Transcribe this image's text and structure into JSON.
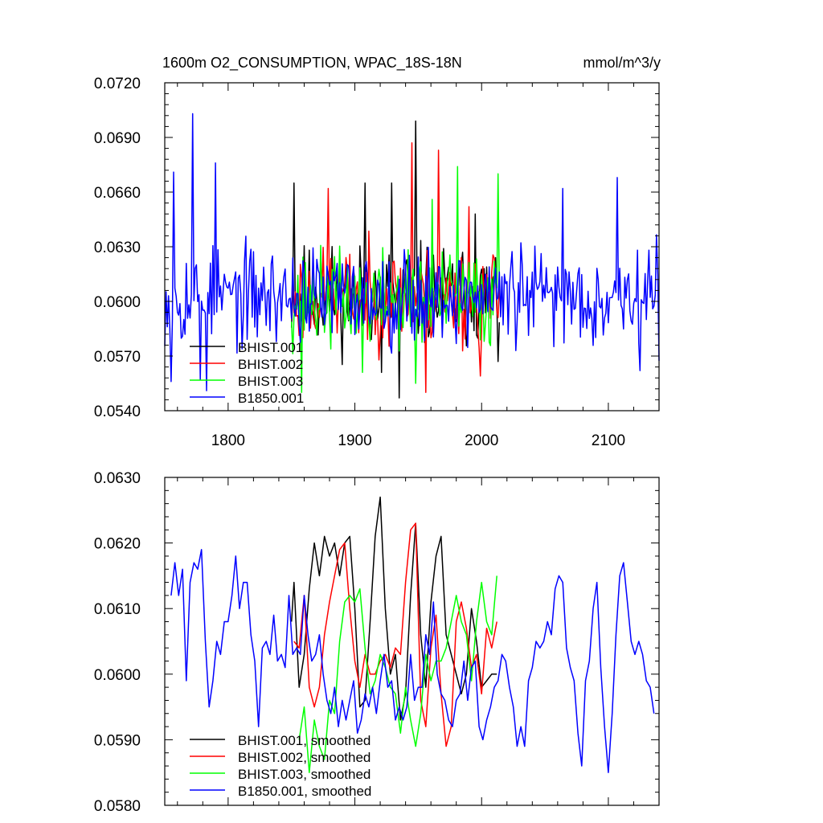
{
  "chart_data": [
    {
      "type": "line",
      "title_left": "1600m O2_CONSUMPTION, WPAC_18S-18N",
      "title_right": "mmol/m^3/y",
      "xlim": [
        1750,
        2140
      ],
      "ylim": [
        0.054,
        0.072
      ],
      "x_ticks": [
        1800,
        1900,
        2000,
        2100
      ],
      "y_ticks": [
        0.054,
        0.057,
        0.06,
        0.063,
        0.066,
        0.069,
        0.072
      ],
      "y_tick_labels": [
        "0.0540",
        "0.0570",
        "0.0600",
        "0.0630",
        "0.0660",
        "0.0690",
        "0.0720"
      ],
      "legend_position": "bottom-left",
      "grid": false,
      "series": [
        {
          "name": "BHIST.001",
          "color": "#000000",
          "x_start": 1850,
          "x_end": 2014,
          "mean": 0.0603,
          "amplitude": 0.0022,
          "seed": 11,
          "peaks": [
            [
              1852,
              0.0665
            ],
            [
              1908,
              0.0665
            ],
            [
              1929,
              0.0665
            ],
            [
              1948,
              0.0699
            ],
            [
              1995,
              0.0648
            ]
          ],
          "troughs": [
            [
              1935,
              0.0547
            ],
            [
              1921,
              0.0561
            ],
            [
              2013,
              0.0567
            ]
          ]
        },
        {
          "name": "BHIST.002",
          "color": "#ff0000",
          "x_start": 1850,
          "x_end": 2014,
          "mean": 0.0602,
          "amplitude": 0.0021,
          "seed": 23,
          "peaks": [
            [
              1945,
              0.0687
            ],
            [
              1966,
              0.0683
            ],
            [
              1879,
              0.0662
            ],
            [
              1990,
              0.0652
            ]
          ],
          "troughs": [
            [
              1956,
              0.055
            ],
            [
              1999,
              0.0559
            ]
          ]
        },
        {
          "name": "BHIST.003",
          "color": "#00ff00",
          "x_start": 1850,
          "x_end": 2014,
          "mean": 0.0601,
          "amplitude": 0.0021,
          "seed": 37,
          "peaks": [
            [
              1981,
              0.0674
            ],
            [
              2013,
              0.067
            ],
            [
              1961,
              0.0656
            ]
          ],
          "troughs": [
            [
              1858,
              0.055
            ],
            [
              1906,
              0.0561
            ],
            [
              1948,
              0.0555
            ]
          ]
        },
        {
          "name": "B1850.001",
          "color": "#0000ff",
          "x_start": 1750,
          "x_end": 2140,
          "mean": 0.0603,
          "amplitude": 0.0021,
          "seed": 53,
          "peaks": [
            [
              1772,
              0.0703
            ],
            [
              1757,
              0.0671
            ],
            [
              1790,
              0.0676
            ],
            [
              2107,
              0.0668
            ],
            [
              2064,
              0.0662
            ]
          ],
          "troughs": [
            [
              1755,
              0.0556
            ],
            [
              1778,
              0.0557
            ],
            [
              1783,
              0.0551
            ],
            [
              2125,
              0.0562
            ]
          ]
        }
      ]
    },
    {
      "type": "line",
      "xlim": [
        1750,
        2140
      ],
      "ylim": [
        0.058,
        0.063
      ],
      "x_ticks": [
        1800,
        1900,
        2000,
        2100
      ],
      "y_ticks": [
        0.058,
        0.059,
        0.06,
        0.061,
        0.062,
        0.063
      ],
      "y_tick_labels": [
        "0.0580",
        "0.0590",
        "0.0600",
        "0.0610",
        "0.0620",
        "0.0630"
      ],
      "legend_position": "bottom-left",
      "grid": false,
      "series": [
        {
          "name": "BHIST.001, smoothed",
          "color": "#000000",
          "x": [
            1850,
            1852,
            1856,
            1860,
            1864,
            1868,
            1872,
            1876,
            1880,
            1884,
            1888,
            1892,
            1896,
            1900,
            1904,
            1908,
            1912,
            1916,
            1920,
            1924,
            1928,
            1932,
            1936,
            1940,
            1944,
            1948,
            1952,
            1956,
            1960,
            1964,
            1968,
            1972,
            1976,
            1980,
            1984,
            1988,
            1992,
            1996,
            2000,
            2004,
            2008,
            2012
          ],
          "y": [
            0.0608,
            0.0614,
            0.0598,
            0.0603,
            0.0613,
            0.062,
            0.0615,
            0.0621,
            0.0618,
            0.062,
            0.0615,
            0.062,
            0.0621,
            0.061,
            0.0595,
            0.0596,
            0.0608,
            0.0621,
            0.0627,
            0.061,
            0.06,
            0.0603,
            0.0593,
            0.0597,
            0.0612,
            0.0623,
            0.0606,
            0.0598,
            0.0611,
            0.0618,
            0.0621,
            0.0606,
            0.0603,
            0.06,
            0.0597,
            0.06,
            0.061,
            0.0605,
            0.0598,
            0.0599,
            0.06,
            0.06
          ]
        },
        {
          "name": "BHIST.002, smoothed",
          "color": "#ff0000",
          "x": [
            1852,
            1856,
            1860,
            1864,
            1868,
            1872,
            1876,
            1880,
            1884,
            1888,
            1892,
            1896,
            1900,
            1904,
            1908,
            1912,
            1916,
            1920,
            1924,
            1928,
            1932,
            1936,
            1940,
            1944,
            1948,
            1952,
            1956,
            1960,
            1964,
            1968,
            1972,
            1976,
            1980,
            1984,
            1988,
            1992,
            1996,
            2000,
            2004,
            2008,
            2012
          ],
          "y": [
            0.0605,
            0.0604,
            0.0612,
            0.0598,
            0.0595,
            0.0598,
            0.0606,
            0.0611,
            0.0615,
            0.0619,
            0.062,
            0.061,
            0.0602,
            0.0598,
            0.0603,
            0.06,
            0.06,
            0.0602,
            0.0603,
            0.0601,
            0.0604,
            0.0603,
            0.0614,
            0.0622,
            0.0623,
            0.0596,
            0.0592,
            0.0604,
            0.0609,
            0.0597,
            0.0589,
            0.0592,
            0.0608,
            0.0611,
            0.0607,
            0.0601,
            0.0603,
            0.0597,
            0.0607,
            0.0604,
            0.0608
          ]
        },
        {
          "name": "BHIST.003, smoothed",
          "color": "#00ff00",
          "x": [
            1856,
            1860,
            1864,
            1868,
            1872,
            1876,
            1880,
            1884,
            1888,
            1892,
            1896,
            1900,
            1904,
            1908,
            1912,
            1916,
            1920,
            1924,
            1928,
            1932,
            1936,
            1940,
            1944,
            1948,
            1952,
            1956,
            1960,
            1964,
            1968,
            1972,
            1976,
            1980,
            1984,
            1988,
            1992,
            1996,
            2000,
            2004,
            2008,
            2012
          ],
          "y": [
            0.059,
            0.0595,
            0.0585,
            0.0593,
            0.0589,
            0.0587,
            0.0596,
            0.0594,
            0.0605,
            0.0611,
            0.0612,
            0.0611,
            0.0613,
            0.0604,
            0.0597,
            0.0599,
            0.0603,
            0.0601,
            0.0598,
            0.0597,
            0.0591,
            0.0598,
            0.0593,
            0.0589,
            0.0594,
            0.0603,
            0.0599,
            0.0602,
            0.0602,
            0.0604,
            0.0608,
            0.0612,
            0.0608,
            0.0606,
            0.0599,
            0.0608,
            0.0614,
            0.0608,
            0.0606,
            0.0615
          ]
        },
        {
          "name": "B1850.001, smoothed",
          "color": "#0000ff",
          "x": [
            1755,
            1758,
            1761,
            1764,
            1767,
            1770,
            1773,
            1776,
            1779,
            1782,
            1785,
            1788,
            1791,
            1794,
            1797,
            1800,
            1803,
            1806,
            1809,
            1812,
            1815,
            1818,
            1821,
            1824,
            1827,
            1830,
            1833,
            1836,
            1839,
            1842,
            1845,
            1848,
            1851,
            1854,
            1857,
            1860,
            1863,
            1866,
            1869,
            1872,
            1875,
            1878,
            1881,
            1884,
            1887,
            1890,
            1893,
            1896,
            1899,
            1902,
            1905,
            1908,
            1911,
            1914,
            1917,
            1920,
            1923,
            1926,
            1929,
            1932,
            1935,
            1938,
            1941,
            1944,
            1947,
            1950,
            1953,
            1956,
            1959,
            1962,
            1965,
            1968,
            1971,
            1974,
            1977,
            1980,
            1983,
            1986,
            1989,
            1992,
            1995,
            1998,
            2001,
            2004,
            2007,
            2010,
            2013,
            2016,
            2019,
            2022,
            2025,
            2028,
            2031,
            2034,
            2037,
            2040,
            2043,
            2046,
            2049,
            2052,
            2055,
            2058,
            2061,
            2064,
            2067,
            2070,
            2073,
            2076,
            2079,
            2082,
            2085,
            2088,
            2091,
            2094,
            2097,
            2100,
            2103,
            2106,
            2109,
            2112,
            2115,
            2118,
            2121,
            2124,
            2127,
            2130,
            2133,
            2136
          ],
          "y": [
            0.0612,
            0.0617,
            0.0612,
            0.0616,
            0.0599,
            0.0614,
            0.0617,
            0.0616,
            0.0619,
            0.0605,
            0.0595,
            0.0599,
            0.0605,
            0.0603,
            0.0608,
            0.0608,
            0.0612,
            0.0618,
            0.061,
            0.0614,
            0.0614,
            0.0606,
            0.0602,
            0.0592,
            0.0604,
            0.0605,
            0.0603,
            0.0609,
            0.0602,
            0.0603,
            0.0601,
            0.0612,
            0.0603,
            0.0604,
            0.0603,
            0.0612,
            0.0606,
            0.0602,
            0.0603,
            0.0606,
            0.06,
            0.0596,
            0.0594,
            0.0598,
            0.0592,
            0.0596,
            0.0593,
            0.0596,
            0.0599,
            0.0591,
            0.0593,
            0.0597,
            0.0595,
            0.0598,
            0.0594,
            0.0599,
            0.0603,
            0.0598,
            0.0599,
            0.0593,
            0.0595,
            0.0593,
            0.0595,
            0.0603,
            0.0596,
            0.0598,
            0.0598,
            0.0606,
            0.0603,
            0.0611,
            0.06,
            0.0597,
            0.0596,
            0.0593,
            0.0592,
            0.0596,
            0.0597,
            0.0602,
            0.0596,
            0.0601,
            0.0602,
            0.0592,
            0.059,
            0.0593,
            0.0595,
            0.0598,
            0.0599,
            0.0603,
            0.0602,
            0.0598,
            0.0595,
            0.0589,
            0.0592,
            0.0589,
            0.0599,
            0.0601,
            0.0605,
            0.0604,
            0.0605,
            0.0608,
            0.0606,
            0.0613,
            0.0615,
            0.0614,
            0.0604,
            0.0601,
            0.0599,
            0.0591,
            0.0586,
            0.0599,
            0.0602,
            0.061,
            0.0614,
            0.0601,
            0.0592,
            0.0585,
            0.0594,
            0.0606,
            0.0615,
            0.0617,
            0.0611,
            0.0605,
            0.0603,
            0.0605,
            0.0603,
            0.0599,
            0.0598,
            0.0594
          ]
        }
      ]
    }
  ]
}
